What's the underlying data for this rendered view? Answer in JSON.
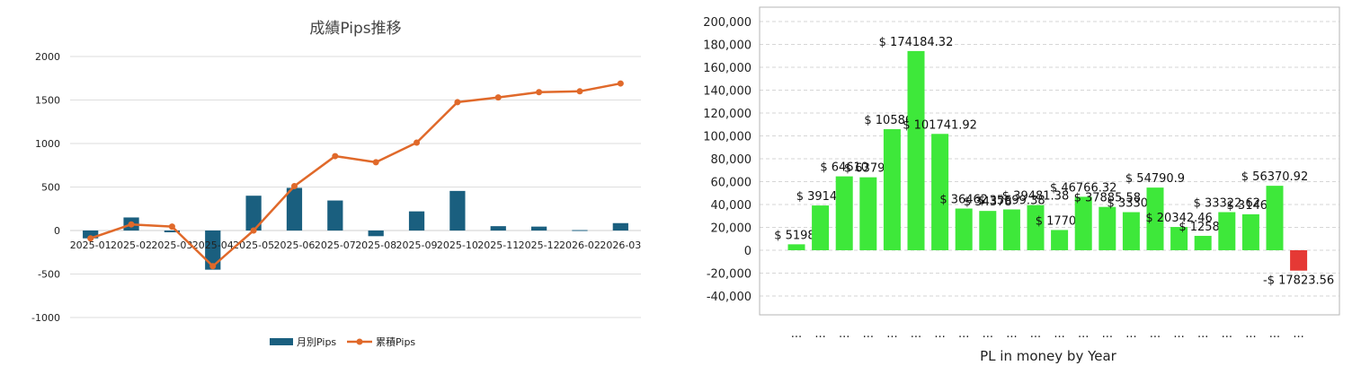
{
  "chart_data": [
    {
      "type": "bar+line",
      "title": "成績Pips推移",
      "categories": [
        "2025-01",
        "2025-02",
        "2025-03",
        "2025-04",
        "2025-05",
        "2025-06",
        "2025-07",
        "2025-08",
        "2025-09",
        "2025-10",
        "2025-11",
        "2025-12",
        "2026-02",
        "2026-03"
      ],
      "series": [
        {
          "name": "月別Pips",
          "type": "bar",
          "values": [
            -90,
            150,
            -20,
            -450,
            400,
            490,
            345,
            -65,
            220,
            455,
            50,
            45,
            5,
            85
          ]
        },
        {
          "name": "累積Pips",
          "type": "line",
          "values": [
            -90,
            70,
            45,
            -410,
            0,
            510,
            855,
            785,
            1010,
            1475,
            1530,
            1590,
            1600,
            1690
          ]
        }
      ],
      "yticks": [
        "2000",
        "1500",
        "1000",
        "500",
        "0",
        "-500",
        "-1000"
      ],
      "ylim": [
        -1000,
        2000
      ],
      "grid": true,
      "legend": "bottom",
      "colors": {
        "bar": "#1a5f7f",
        "line": "#e0692a"
      }
    },
    {
      "type": "bar",
      "xlabel": "PL in money by Year",
      "categories": [
        "...",
        "...",
        "...",
        "...",
        "...",
        "...",
        "...",
        "...",
        "...",
        "...",
        "...",
        "...",
        "...",
        "...",
        "...",
        "...",
        "...",
        "...",
        "...",
        "...",
        "...",
        "..."
      ],
      "values": [
        5198,
        39146,
        64610,
        63798,
        105866,
        174184.32,
        101741.92,
        36462,
        34378,
        35699.38,
        39481.38,
        17701,
        46766.32,
        37885.58,
        33301,
        54790.9,
        20342.46,
        12589,
        33322.62,
        31464,
        56370.92,
        -17823.56
      ],
      "data_labels": [
        "$ 5198.",
        "$ 39146",
        "$ 64610",
        "$ 63798",
        "$ 105866",
        "$ 174184.32",
        "$ 101741.92",
        "$ 36462",
        "$ 34378",
        "$ 35699.38",
        "$ 39481.38",
        "$ 17701",
        "$ 46766.32",
        "$ 37885.58",
        "$ 33301",
        "$ 54790.9",
        "$ 20342.46",
        "$ 12589",
        "$ 33322.62",
        "$ 31464",
        "$ 56370.92",
        "-$ 17823.56"
      ],
      "yticks": [
        "200,000",
        "180,000",
        "160,000",
        "140,000",
        "120,000",
        "100,000",
        "80,000",
        "60,000",
        "40,000",
        "20,000",
        "0",
        "-20,000",
        "-40,000"
      ],
      "ylim": [
        -55000,
        200000
      ],
      "grid": true,
      "colors": {
        "positive": "#3ee83a",
        "negative": "#e53935"
      }
    }
  ]
}
